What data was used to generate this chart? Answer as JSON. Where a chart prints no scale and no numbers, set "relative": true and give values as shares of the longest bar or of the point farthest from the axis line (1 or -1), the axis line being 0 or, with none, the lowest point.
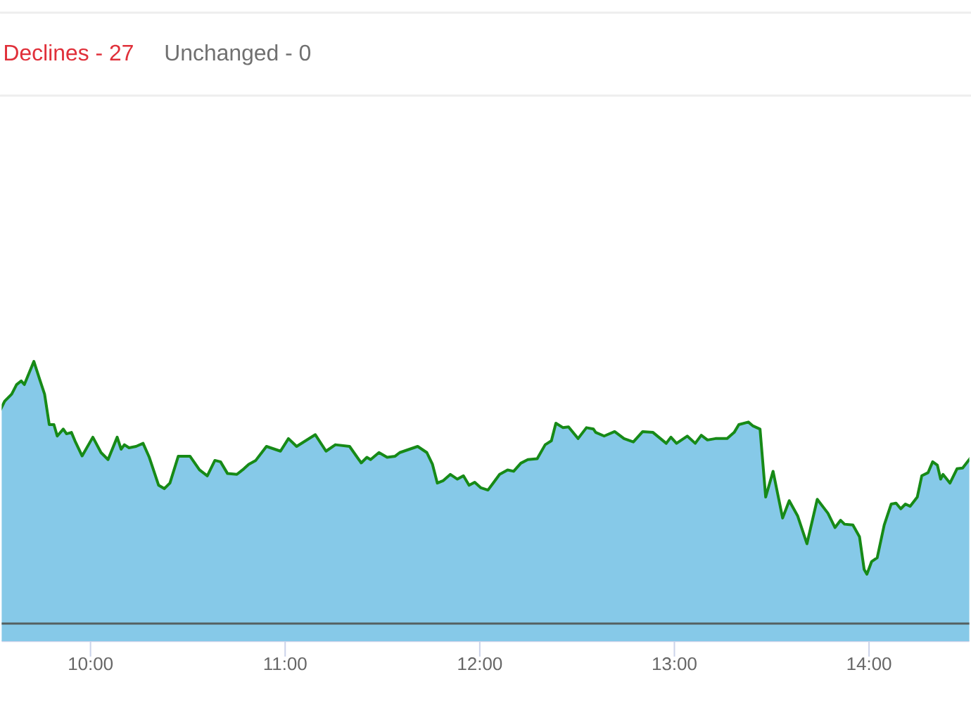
{
  "chart_data": {
    "type": "area",
    "annotations": [
      "Declines - 27",
      "Unchanged - 0"
    ],
    "relative": true,
    "x": [
      9.535,
      9.559,
      9.595,
      9.62,
      9.644,
      9.66,
      9.709,
      9.74,
      9.764,
      9.788,
      9.812,
      9.829,
      9.86,
      9.877,
      9.902,
      9.92,
      9.957,
      10.012,
      10.054,
      10.09,
      10.137,
      10.157,
      10.174,
      10.198,
      10.234,
      10.27,
      10.302,
      10.35,
      10.379,
      10.408,
      10.451,
      10.511,
      10.56,
      10.6,
      10.639,
      10.668,
      10.704,
      10.752,
      10.788,
      10.813,
      10.849,
      10.904,
      10.976,
      11.017,
      11.059,
      11.155,
      11.21,
      11.258,
      11.331,
      11.391,
      11.42,
      11.439,
      11.482,
      11.524,
      11.565,
      11.589,
      11.681,
      11.728,
      11.757,
      11.782,
      11.813,
      11.849,
      11.885,
      11.916,
      11.945,
      11.974,
      12.006,
      12.042,
      12.066,
      12.102,
      12.143,
      12.174,
      12.211,
      12.247,
      12.295,
      12.336,
      12.368,
      12.391,
      12.428,
      12.456,
      12.505,
      12.548,
      12.584,
      12.596,
      12.639,
      12.693,
      12.741,
      12.789,
      12.837,
      12.89,
      12.958,
      12.982,
      13.011,
      13.066,
      13.107,
      13.138,
      13.17,
      13.211,
      13.271,
      13.307,
      13.331,
      13.38,
      13.404,
      13.44,
      13.469,
      13.507,
      13.556,
      13.59,
      13.633,
      13.681,
      13.734,
      13.789,
      13.825,
      13.854,
      13.874,
      13.917,
      13.951,
      13.975,
      13.989,
      14.013,
      14.042,
      14.078,
      14.114,
      14.139,
      14.163,
      14.187,
      14.211,
      14.248,
      14.271,
      14.303,
      14.327,
      14.351,
      14.368,
      14.38,
      14.416,
      14.452,
      14.481,
      14.524
    ],
    "series": [
      {
        "color": "#86c9e8",
        "values": [
          0.824,
          0.858,
          0.883,
          0.917,
          0.93,
          0.917,
          1.0,
          0.933,
          0.883,
          0.774,
          0.774,
          0.733,
          0.758,
          0.741,
          0.746,
          0.716,
          0.662,
          0.729,
          0.674,
          0.649,
          0.729,
          0.686,
          0.702,
          0.691,
          0.696,
          0.707,
          0.657,
          0.557,
          0.545,
          0.565,
          0.661,
          0.661,
          0.612,
          0.591,
          0.646,
          0.641,
          0.599,
          0.596,
          0.616,
          0.632,
          0.646,
          0.696,
          0.679,
          0.724,
          0.696,
          0.738,
          0.679,
          0.702,
          0.696,
          0.637,
          0.657,
          0.649,
          0.674,
          0.657,
          0.661,
          0.674,
          0.696,
          0.674,
          0.632,
          0.565,
          0.574,
          0.596,
          0.579,
          0.591,
          0.557,
          0.568,
          0.548,
          0.54,
          0.562,
          0.596,
          0.612,
          0.607,
          0.636,
          0.649,
          0.652,
          0.702,
          0.716,
          0.779,
          0.763,
          0.766,
          0.724,
          0.763,
          0.758,
          0.746,
          0.733,
          0.749,
          0.724,
          0.712,
          0.749,
          0.746,
          0.707,
          0.729,
          0.707,
          0.733,
          0.707,
          0.736,
          0.719,
          0.724,
          0.724,
          0.746,
          0.774,
          0.783,
          0.769,
          0.758,
          0.515,
          0.607,
          0.44,
          0.502,
          0.448,
          0.348,
          0.507,
          0.457,
          0.406,
          0.432,
          0.418,
          0.415,
          0.373,
          0.256,
          0.239,
          0.284,
          0.298,
          0.415,
          0.49,
          0.493,
          0.473,
          0.49,
          0.482,
          0.515,
          0.591,
          0.602,
          0.641,
          0.629,
          0.579,
          0.596,
          0.565,
          0.616,
          0.619,
          0.657
        ]
      }
    ],
    "xlim": [
      9.535,
      14.524
    ],
    "xticks": [
      {
        "value": 10,
        "label": "10:00"
      },
      {
        "value": 11,
        "label": "11:00"
      },
      {
        "value": 12,
        "label": "12:00"
      },
      {
        "value": 13,
        "label": "13:00"
      },
      {
        "value": 14,
        "label": "14:00"
      }
    ],
    "ref_lines": [
      {
        "axis": "y",
        "value": 0.063,
        "color": "#546060"
      }
    ]
  }
}
